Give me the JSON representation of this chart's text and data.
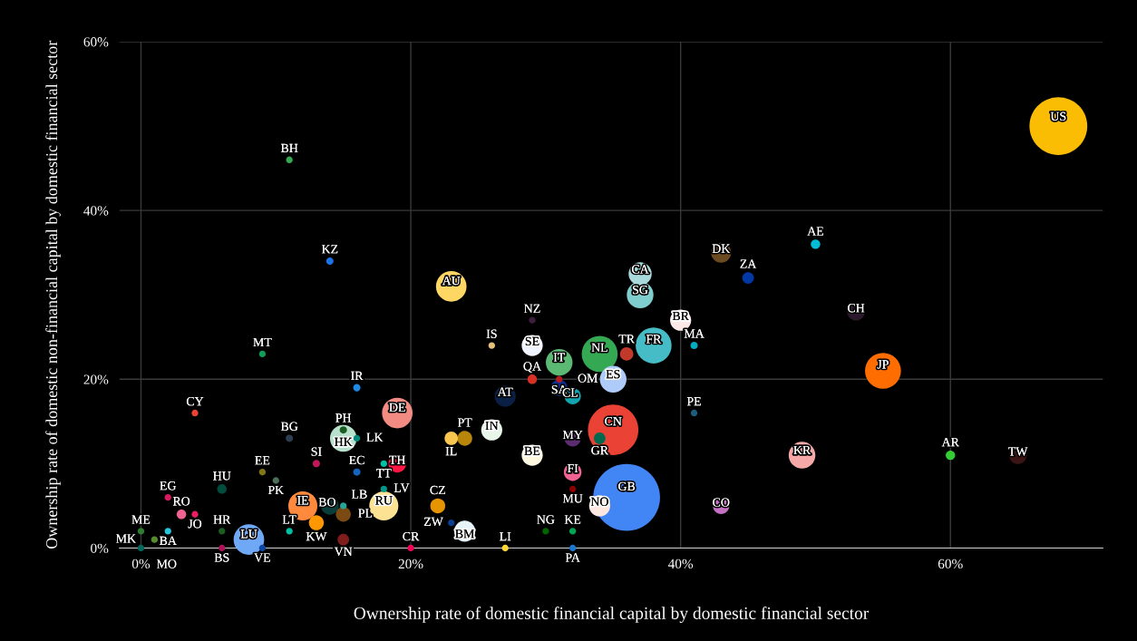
{
  "chart_data": {
    "type": "bubble",
    "xlabel": "Ownership rate of domestic financial capital by domestic financial sector",
    "ylabel": "Ownership rate of domestic non-financial capital by domestic financial sector",
    "xlim": [
      -1.6,
      71.3
    ],
    "ylim": [
      0,
      60
    ],
    "xticks": [
      {
        "value": 0,
        "label": "0%"
      },
      {
        "value": 20,
        "label": "20%"
      },
      {
        "value": 40,
        "label": "40%"
      },
      {
        "value": 60,
        "label": "60%"
      }
    ],
    "yticks": [
      {
        "value": 0,
        "label": "0%"
      },
      {
        "value": 20,
        "label": "20%"
      },
      {
        "value": 40,
        "label": "40%"
      },
      {
        "value": 60,
        "label": "60%"
      }
    ],
    "grid": true,
    "series": [
      {
        "x": [
          68,
          11,
          14,
          9,
          16,
          23,
          4,
          11,
          15,
          15,
          16,
          13,
          16,
          18,
          19,
          19,
          9,
          10,
          6,
          18,
          2,
          3,
          4,
          12,
          14,
          15,
          15,
          18,
          13,
          0,
          2,
          1,
          6,
          8,
          11,
          15,
          0,
          6,
          9,
          20,
          27,
          32,
          22,
          23,
          24,
          23,
          24,
          26,
          29,
          32,
          34,
          35,
          32,
          32,
          36,
          34,
          30,
          32,
          29,
          26,
          29,
          31,
          29,
          31,
          31,
          27,
          32,
          34,
          36,
          35,
          38,
          37,
          37,
          40,
          41,
          43,
          50,
          45,
          53,
          55,
          41,
          49,
          60,
          65,
          43
        ],
        "values": [
          50,
          46,
          34,
          23,
          19,
          31,
          16,
          13,
          14,
          13,
          13,
          10,
          9,
          10,
          10,
          16,
          9,
          8,
          7,
          7,
          6,
          4,
          4,
          5,
          5,
          5,
          4,
          5,
          3,
          2,
          2,
          1,
          2,
          1,
          2,
          1,
          0,
          0,
          0,
          0,
          0,
          0,
          5,
          3,
          2,
          13,
          13,
          14,
          11,
          13,
          13,
          14,
          9,
          7,
          6,
          5,
          2,
          2,
          27,
          24,
          24,
          22,
          20,
          20,
          19,
          18,
          18,
          23,
          23,
          20,
          24,
          32.5,
          30,
          27,
          24,
          35,
          36,
          32,
          28,
          21,
          16,
          11,
          11,
          11,
          5
        ],
        "sizes": [
          0.75,
          0.01,
          0.012,
          0.01,
          0.012,
          0.21,
          0.01,
          0.012,
          0.012,
          0.16,
          0.01,
          0.012,
          0.012,
          0.01,
          0.07,
          0.21,
          0.01,
          0.01,
          0.02,
          0.01,
          0.01,
          0.02,
          0.01,
          0.19,
          0.07,
          0.01,
          0.05,
          0.19,
          0.05,
          0.01,
          0.01,
          0.01,
          0.01,
          0.21,
          0.01,
          0.03,
          0.01,
          0.01,
          0.01,
          0.01,
          0.01,
          0.01,
          0.05,
          0.01,
          0.1,
          0.04,
          0.05,
          0.1,
          0.1,
          0.06,
          0.03,
          0.57,
          0.07,
          0.01,
          1,
          0.1,
          0.01,
          0.01,
          0.01,
          0.01,
          0.1,
          0.16,
          0.02,
          0.01,
          0.06,
          0.1,
          0.06,
          0.29,
          0.04,
          0.16,
          0.29,
          0.12,
          0.16,
          0.1,
          0.012,
          0.09,
          0.02,
          0.03,
          0.07,
          0.29,
          0.01,
          0.16,
          0.02,
          0.07,
          0.06
        ],
        "colors": [
          "#fbbc04",
          "#34a853",
          "#1a73e8",
          "#0f9d58",
          "#1e88e5",
          "#fdd663",
          "#ea4335",
          "#2c3e50",
          "#1b5e20",
          "#b7e1cd",
          "#00897b",
          "#c2185b",
          "#1565c0",
          "#00bfa5",
          "#ff1744",
          "#f28b82",
          "#827717",
          "#4e6e58",
          "#004d40",
          "#009688",
          "#d81b60",
          "#f06292",
          "#e91e63",
          "#ff8a3d",
          "#0a3d3a",
          "#26a69a",
          "#7b4a12",
          "#fde293",
          "#ff9800",
          "#2e7d32",
          "#26c6da",
          "#558b2f",
          "#1b5e20",
          "#6fa8f5",
          "#00bfa5",
          "#7f1d1d",
          "#00695c",
          "#ad1457",
          "#0d47a1",
          "#f50057",
          "#fdd835",
          "#1976d2",
          "#e69500",
          "#0b3d91",
          "#e6f4fa",
          "#f9c74f",
          "#b8860b",
          "#e8f5e9",
          "#fff8e1",
          "#5b2c6f",
          "#006a4e",
          "#ea4335",
          "#f06292",
          "#8b0000",
          "#4285f4",
          "#fde7e0",
          "#006400",
          "#00a651",
          "#3d1f3d",
          "#e5c07b",
          "#f0f4ff",
          "#5bb974",
          "#d93025",
          "#b71c1c",
          "#0d2c8c",
          "#0a1f44",
          "#12a4af",
          "#34a853",
          "#c0392b",
          "#aecbfa",
          "#46bdc6",
          "#a8dadc",
          "#7fcdcd",
          "#fde8e8",
          "#00acc1",
          "#6b4a22",
          "#00bcd4",
          "#0039a6",
          "#2b1a2b",
          "#ff6d00",
          "#1c5d7e",
          "#f4a8a8",
          "#33cc33",
          "#3b1414",
          "#c471c4"
        ]
      }
    ],
    "annotations": [
      {
        "text": "US",
        "x": 68,
        "y": 50
      },
      {
        "text": "BH",
        "x": 11,
        "y": 46
      },
      {
        "text": "KZ",
        "x": 14,
        "y": 34
      },
      {
        "text": "MT",
        "x": 9,
        "y": 23
      },
      {
        "text": "IR",
        "x": 16,
        "y": 19
      },
      {
        "text": "AU",
        "x": 23,
        "y": 31
      },
      {
        "text": "CY",
        "x": 4,
        "y": 16
      },
      {
        "text": "BG",
        "x": 11,
        "y": 13
      },
      {
        "text": "PH",
        "x": 15,
        "y": 14
      },
      {
        "text": "HK",
        "x": 15,
        "y": 13
      },
      {
        "text": "LK",
        "x": 16,
        "y": 13
      },
      {
        "text": "SI",
        "x": 13,
        "y": 10
      },
      {
        "text": "EC",
        "x": 16,
        "y": 9
      },
      {
        "text": "TT",
        "x": 18,
        "y": 10
      },
      {
        "text": "TH",
        "x": 19,
        "y": 10
      },
      {
        "text": "DE",
        "x": 19,
        "y": 16
      },
      {
        "text": "EE",
        "x": 9,
        "y": 9
      },
      {
        "text": "PK",
        "x": 10,
        "y": 8
      },
      {
        "text": "HU",
        "x": 6,
        "y": 7
      },
      {
        "text": "LV",
        "x": 18,
        "y": 7
      },
      {
        "text": "EG",
        "x": 2,
        "y": 6
      },
      {
        "text": "RO",
        "x": 3,
        "y": 4
      },
      {
        "text": "JO",
        "x": 4,
        "y": 4
      },
      {
        "text": "IE",
        "x": 12,
        "y": 5
      },
      {
        "text": "BO",
        "x": 14,
        "y": 5
      },
      {
        "text": "LB",
        "x": 15,
        "y": 5
      },
      {
        "text": "PL",
        "x": 15,
        "y": 4
      },
      {
        "text": "RU",
        "x": 18,
        "y": 5
      },
      {
        "text": "KW",
        "x": 13,
        "y": 3
      },
      {
        "text": "ME",
        "x": 0,
        "y": 2
      },
      {
        "text": "BA",
        "x": 2,
        "y": 2
      },
      {
        "text": "MK",
        "x": 1,
        "y": 1
      },
      {
        "text": "HR",
        "x": 6,
        "y": 2
      },
      {
        "text": "LU",
        "x": 8,
        "y": 1
      },
      {
        "text": "LT",
        "x": 11,
        "y": 2
      },
      {
        "text": "VN",
        "x": 15,
        "y": 1
      },
      {
        "text": "MO",
        "x": 0,
        "y": 0
      },
      {
        "text": "BS",
        "x": 6,
        "y": 0
      },
      {
        "text": "VE",
        "x": 9,
        "y": 0
      },
      {
        "text": "CR",
        "x": 20,
        "y": 0
      },
      {
        "text": "LI",
        "x": 27,
        "y": 0
      },
      {
        "text": "PA",
        "x": 32,
        "y": 0
      },
      {
        "text": "CZ",
        "x": 22,
        "y": 5
      },
      {
        "text": "ZW",
        "x": 23,
        "y": 3
      },
      {
        "text": "BM",
        "x": 24,
        "y": 2
      },
      {
        "text": "IL",
        "x": 23,
        "y": 13
      },
      {
        "text": "PT",
        "x": 24,
        "y": 13
      },
      {
        "text": "IN",
        "x": 26,
        "y": 14
      },
      {
        "text": "BE",
        "x": 29,
        "y": 11
      },
      {
        "text": "MY",
        "x": 32,
        "y": 13
      },
      {
        "text": "GR",
        "x": 34,
        "y": 13
      },
      {
        "text": "CN",
        "x": 35,
        "y": 14
      },
      {
        "text": "FI",
        "x": 32,
        "y": 9
      },
      {
        "text": "MU",
        "x": 32,
        "y": 7
      },
      {
        "text": "GB",
        "x": 36,
        "y": 6
      },
      {
        "text": "NO",
        "x": 34,
        "y": 5
      },
      {
        "text": "NG",
        "x": 30,
        "y": 2
      },
      {
        "text": "KE",
        "x": 32,
        "y": 2
      },
      {
        "text": "NZ",
        "x": 29,
        "y": 27
      },
      {
        "text": "IS",
        "x": 26,
        "y": 24
      },
      {
        "text": "SE",
        "x": 29,
        "y": 24
      },
      {
        "text": "IT",
        "x": 31,
        "y": 22
      },
      {
        "text": "QA",
        "x": 29,
        "y": 20
      },
      {
        "text": "OM",
        "x": 31,
        "y": 20
      },
      {
        "text": "SA",
        "x": 31,
        "y": 19
      },
      {
        "text": "AT",
        "x": 27,
        "y": 18
      },
      {
        "text": "CL",
        "x": 32,
        "y": 18
      },
      {
        "text": "NL",
        "x": 34,
        "y": 23
      },
      {
        "text": "TR",
        "x": 36,
        "y": 23
      },
      {
        "text": "ES",
        "x": 35,
        "y": 20
      },
      {
        "text": "FR",
        "x": 38,
        "y": 24
      },
      {
        "text": "CA",
        "x": 37,
        "y": 32.5
      },
      {
        "text": "SG",
        "x": 37,
        "y": 30
      },
      {
        "text": "BR",
        "x": 40,
        "y": 27
      },
      {
        "text": "MA",
        "x": 41,
        "y": 24
      },
      {
        "text": "DK",
        "x": 43,
        "y": 35
      },
      {
        "text": "AE",
        "x": 50,
        "y": 36
      },
      {
        "text": "ZA",
        "x": 45,
        "y": 32
      },
      {
        "text": "CH",
        "x": 53,
        "y": 28
      },
      {
        "text": "JP",
        "x": 55,
        "y": 21
      },
      {
        "text": "PE",
        "x": 41,
        "y": 16
      },
      {
        "text": "KR",
        "x": 49,
        "y": 11
      },
      {
        "text": "AR",
        "x": 60,
        "y": 11
      },
      {
        "text": "TW",
        "x": 65,
        "y": 11
      },
      {
        "text": "CO",
        "x": 43,
        "y": 5
      }
    ]
  }
}
